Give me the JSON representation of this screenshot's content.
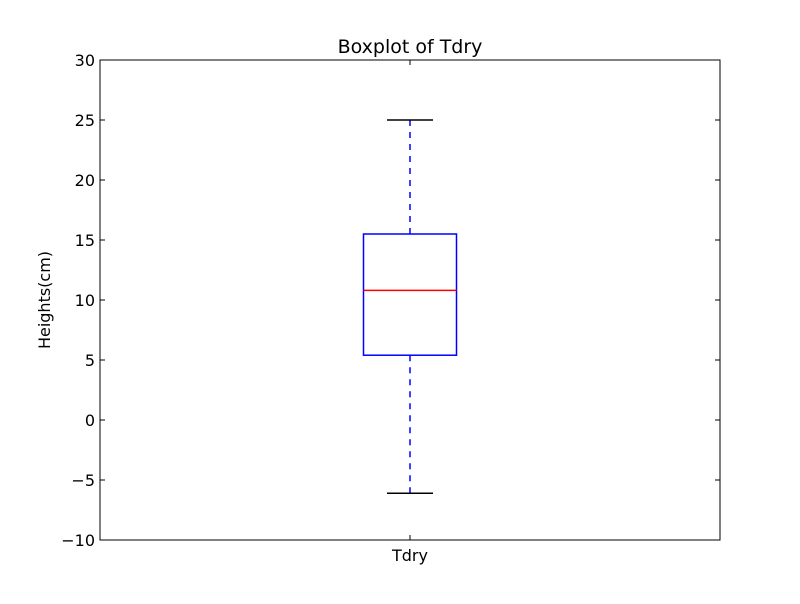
{
  "chart_data": {
    "type": "box",
    "title": "Boxplot of Tdry",
    "xlabel": "",
    "ylabel": "Heights(cm)",
    "ylim": [
      -10,
      30
    ],
    "yticks": [
      -10,
      -5,
      0,
      5,
      10,
      15,
      20,
      25,
      30
    ],
    "ytick_labels": [
      "−10",
      "−5",
      "0",
      "5",
      "10",
      "15",
      "20",
      "25",
      "30"
    ],
    "categories": [
      "Tdry"
    ],
    "boxes": [
      {
        "category": "Tdry",
        "whisker_low": -6.1,
        "q1": 5.4,
        "median": 10.8,
        "q3": 15.5,
        "whisker_high": 25.0
      }
    ],
    "grid": false,
    "colors": {
      "box": "#0000ff",
      "whisker": "#0000ff",
      "median": "#ff0000",
      "cap": "#000000",
      "axes": "#000000"
    }
  }
}
